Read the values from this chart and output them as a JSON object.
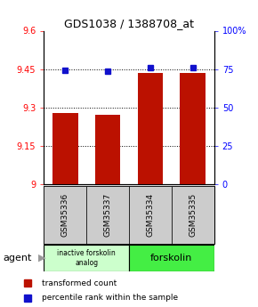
{
  "title": "GDS1038 / 1388708_at",
  "samples": [
    "GSM35336",
    "GSM35337",
    "GSM35334",
    "GSM35335"
  ],
  "bar_values": [
    9.28,
    9.27,
    9.435,
    9.435
  ],
  "dot_values": [
    9.445,
    9.443,
    9.455,
    9.455
  ],
  "bar_color": "#bb1100",
  "dot_color": "#1111cc",
  "ylim_left": [
    9.0,
    9.6
  ],
  "ylim_right": [
    0,
    100
  ],
  "right_ticks": [
    0,
    25,
    50,
    75,
    100
  ],
  "right_tick_labels": [
    "0",
    "25",
    "50",
    "75",
    "100%"
  ],
  "left_ticks": [
    9.0,
    9.15,
    9.3,
    9.45,
    9.6
  ],
  "left_tick_labels": [
    "9",
    "9.15",
    "9.3",
    "9.45",
    "9.6"
  ],
  "hlines": [
    9.15,
    9.3,
    9.45
  ],
  "group1_label": "inactive forskolin\nanalog",
  "group2_label": "forskolin",
  "group1_color": "#ccffcc",
  "group2_color": "#44ee44",
  "agent_label": "agent",
  "legend_bar_label": "transformed count",
  "legend_dot_label": "percentile rank within the sample",
  "bar_width": 0.6,
  "x_positions": [
    0,
    1,
    2,
    3
  ],
  "sample_box_color": "#cccccc",
  "arrow_color": "#999999"
}
